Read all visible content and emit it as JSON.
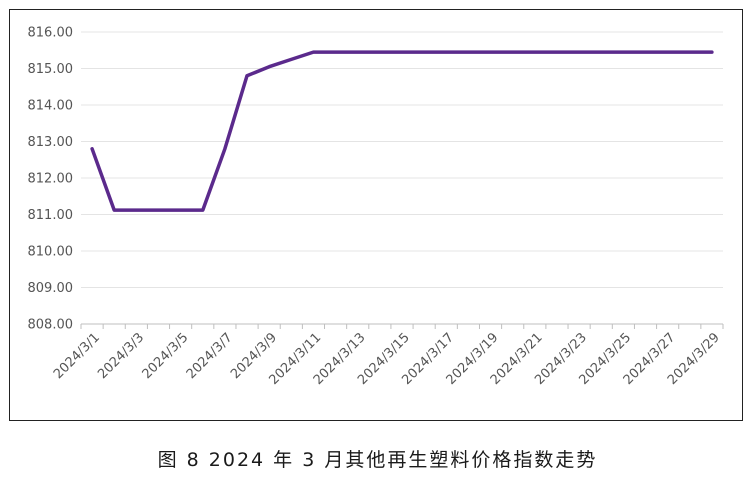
{
  "caption": "图 8  2024 年 3 月其他再生塑料价格指数走势",
  "chart_data": {
    "type": "line",
    "title": "",
    "xlabel": "",
    "ylabel": "",
    "ylim": [
      808,
      816
    ],
    "y_ticks": [
      "816.00",
      "815.00",
      "814.00",
      "813.00",
      "812.00",
      "811.00",
      "810.00",
      "809.00",
      "808.00"
    ],
    "x_tick_labels": [
      "2024/3/1",
      "2024/3/3",
      "2024/3/5",
      "2024/3/7",
      "2024/3/9",
      "2024/3/11",
      "2024/3/13",
      "2024/3/15",
      "2024/3/17",
      "2024/3/19",
      "2024/3/21",
      "2024/3/23",
      "2024/3/25",
      "2024/3/27",
      "2024/3/29"
    ],
    "grid": true,
    "line_color": "#5b2a8c",
    "x": [
      "2024/3/1",
      "2024/3/2",
      "2024/3/3",
      "2024/3/4",
      "2024/3/5",
      "2024/3/6",
      "2024/3/7",
      "2024/3/8",
      "2024/3/9",
      "2024/3/10",
      "2024/3/11",
      "2024/3/12",
      "2024/3/13",
      "2024/3/14",
      "2024/3/15",
      "2024/3/16",
      "2024/3/17",
      "2024/3/18",
      "2024/3/19",
      "2024/3/20",
      "2024/3/21",
      "2024/3/22",
      "2024/3/23",
      "2024/3/24",
      "2024/3/25",
      "2024/3/26",
      "2024/3/27",
      "2024/3/28",
      "2024/3/29"
    ],
    "series": [
      {
        "values": [
          812.8,
          811.12,
          811.12,
          811.12,
          811.12,
          811.12,
          812.8,
          814.8,
          815.05,
          815.25,
          815.45,
          815.45,
          815.45,
          815.45,
          815.45,
          815.45,
          815.45,
          815.45,
          815.45,
          815.45,
          815.45,
          815.45,
          815.45,
          815.45,
          815.45,
          815.45,
          815.45,
          815.45,
          815.45
        ]
      }
    ]
  }
}
